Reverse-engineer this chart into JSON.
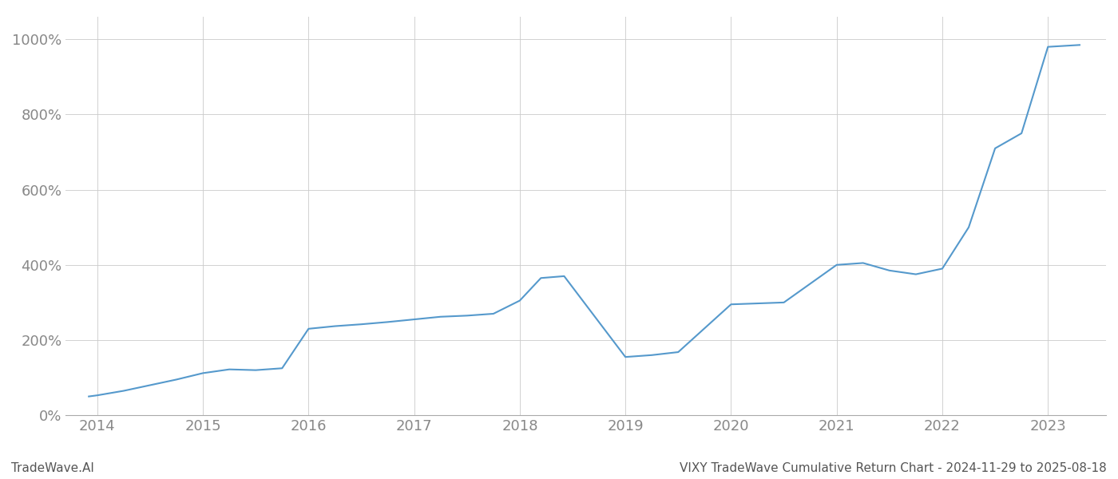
{
  "title_bottom": "VIXY TradeWave Cumulative Return Chart - 2024-11-29 to 2025-08-18",
  "watermark": "TradeWave.AI",
  "line_color": "#5599cc",
  "background_color": "#ffffff",
  "grid_color": "#cccccc",
  "x_values": [
    2013.92,
    2014.0,
    2014.25,
    2014.5,
    2014.75,
    2015.0,
    2015.25,
    2015.5,
    2015.75,
    2016.0,
    2016.25,
    2016.5,
    2016.75,
    2017.0,
    2017.25,
    2017.5,
    2017.75,
    2018.0,
    2018.2,
    2018.42,
    2019.0,
    2019.25,
    2019.5,
    2020.0,
    2020.5,
    2021.0,
    2021.25,
    2021.5,
    2021.75,
    2022.0,
    2022.25,
    2022.5,
    2022.75,
    2023.0,
    2023.3
  ],
  "y_values": [
    50,
    53,
    65,
    80,
    95,
    112,
    122,
    120,
    125,
    230,
    237,
    242,
    248,
    255,
    262,
    265,
    270,
    305,
    365,
    370,
    155,
    160,
    168,
    295,
    300,
    400,
    405,
    385,
    375,
    390,
    500,
    710,
    750,
    980,
    985
  ],
  "xlim": [
    2013.7,
    2023.55
  ],
  "ylim": [
    0,
    1060
  ],
  "yticks": [
    0,
    200,
    400,
    600,
    800,
    1000
  ],
  "ytick_labels": [
    "0%",
    "200%",
    "400%",
    "600%",
    "800%",
    "1000%"
  ],
  "xtick_positions": [
    2014,
    2015,
    2016,
    2017,
    2018,
    2019,
    2020,
    2021,
    2022,
    2023
  ],
  "xtick_labels": [
    "2014",
    "2015",
    "2016",
    "2017",
    "2018",
    "2019",
    "2020",
    "2021",
    "2022",
    "2023"
  ],
  "line_width": 1.5,
  "tick_label_color": "#888888",
  "bottom_text_color": "#555555",
  "watermark_color": "#555555",
  "tick_fontsize": 13,
  "bottom_fontsize": 11
}
